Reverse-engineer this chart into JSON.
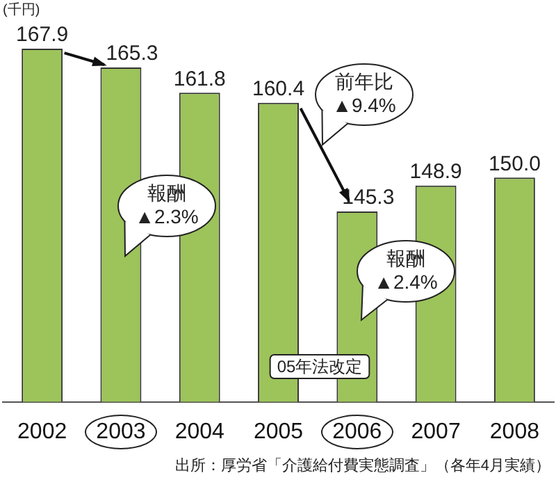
{
  "chart_data": {
    "type": "bar",
    "ylabel": "(千円)",
    "categories": [
      "2002",
      "2003",
      "2004",
      "2005",
      "2006",
      "2007",
      "2008"
    ],
    "values": [
      167.9,
      165.3,
      161.8,
      160.4,
      145.3,
      148.9,
      150.0
    ],
    "value_labels": [
      "167.9",
      "165.3",
      "161.8",
      "160.4",
      "145.3",
      "148.9",
      "150.0"
    ],
    "color": "#9dc35b",
    "grid": false,
    "legend": false,
    "annotations": [
      "報酬\n▲2.3%",
      "前年比\n▲9.4%",
      "報酬\n▲2.4%",
      "05年法改定",
      "出所：厚労省「介護給付費実態調査」（各年4月実績）"
    ]
  }
}
